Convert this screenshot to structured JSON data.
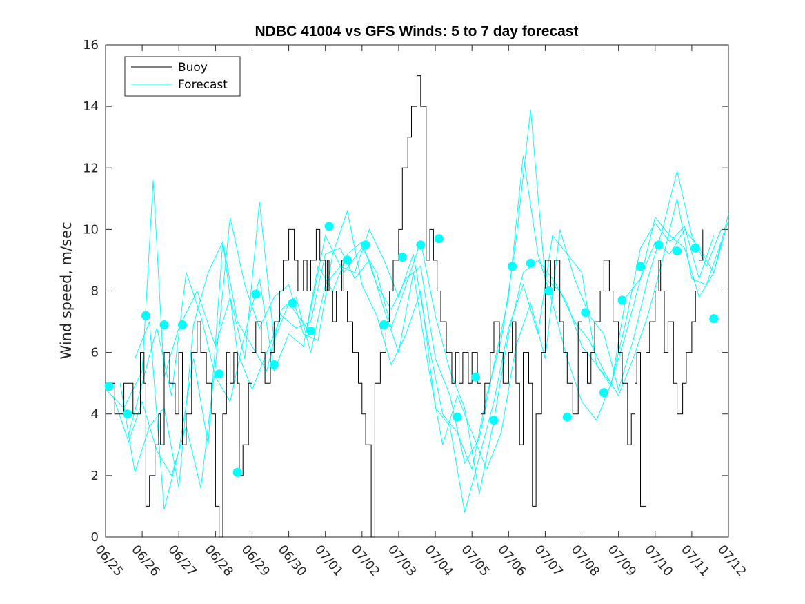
{
  "chart_data": {
    "type": "line",
    "title": "NDBC 41004 vs GFS Winds: 5 to 7 day forecast",
    "ylabel": "Wind speed, m/sec",
    "xlabel": "",
    "xlim": [
      0,
      17
    ],
    "ylim": [
      0,
      16
    ],
    "yticks": [
      0,
      2,
      4,
      6,
      8,
      10,
      12,
      14,
      16
    ],
    "xtick_labels": [
      "06/25",
      "06/26",
      "06/27",
      "06/28",
      "06/29",
      "06/30",
      "07/01",
      "07/02",
      "07/03",
      "07/04",
      "07/05",
      "07/06",
      "07/07",
      "07/08",
      "07/09",
      "07/10",
      "07/11",
      "07/12"
    ],
    "grid": false,
    "legend": {
      "placement": "top-left",
      "entries": [
        "Buoy",
        "Forecast"
      ]
    },
    "colors": {
      "buoy": "#000000",
      "forecast": "#00ffff",
      "axes": "#262626"
    },
    "buoy": {
      "name": "Buoy",
      "x": [
        0.0,
        0.25,
        0.5,
        0.75,
        0.95,
        1.05,
        1.1,
        1.2,
        1.35,
        1.45,
        1.5,
        1.6,
        1.75,
        1.9,
        2.0,
        2.1,
        2.2,
        2.35,
        2.5,
        2.6,
        2.75,
        2.9,
        3.0,
        3.1,
        3.2,
        3.3,
        3.4,
        3.5,
        3.6,
        3.65,
        3.75,
        3.9,
        4.0,
        4.1,
        4.25,
        4.35,
        4.5,
        4.6,
        4.75,
        4.85,
        5.0,
        5.15,
        5.25,
        5.4,
        5.5,
        5.6,
        5.75,
        5.85,
        6.0,
        6.05,
        6.1,
        6.2,
        6.3,
        6.45,
        6.5,
        6.6,
        6.75,
        6.9,
        7.0,
        7.1,
        7.25,
        7.35,
        7.5,
        7.65,
        7.75,
        7.85,
        8.0,
        8.1,
        8.25,
        8.35,
        8.5,
        8.6,
        8.75,
        8.85,
        8.95,
        9.05,
        9.15,
        9.3,
        9.45,
        9.55,
        9.65,
        9.75,
        9.9,
        10.0,
        10.15,
        10.25,
        10.35,
        10.5,
        10.6,
        10.75,
        10.85,
        11.0,
        11.1,
        11.2,
        11.3,
        11.4,
        11.55,
        11.65,
        11.75,
        11.9,
        12.0,
        12.15,
        12.25,
        12.4,
        12.5,
        12.6,
        12.75,
        12.9,
        13.0,
        13.15,
        13.25,
        13.35,
        13.5,
        13.6,
        13.75,
        13.85,
        14.0,
        14.1,
        14.25,
        14.35,
        14.45,
        14.5,
        14.6,
        14.75,
        14.85,
        15.0,
        15.1,
        15.15,
        15.25,
        15.35,
        15.5,
        15.6,
        15.75,
        15.85,
        16.0,
        16.1,
        16.2,
        16.3
      ],
      "y": [
        5,
        4,
        5,
        4,
        6,
        5,
        1,
        2,
        3,
        4,
        3,
        6,
        5,
        4,
        6,
        3,
        4,
        6,
        7,
        6,
        5,
        4,
        1,
        0,
        4,
        6,
        5,
        6,
        5,
        2,
        3,
        5,
        6,
        7,
        6,
        5,
        6,
        7,
        8,
        9,
        10,
        9,
        8,
        9,
        8,
        9,
        10,
        9,
        8,
        9,
        8,
        7,
        8,
        9,
        8,
        7,
        6,
        5,
        4,
        3,
        0,
        5,
        6,
        7,
        8,
        9,
        10,
        12,
        13,
        14,
        15,
        14,
        9,
        10,
        9,
        8,
        7,
        6,
        5,
        6,
        5,
        6,
        5,
        6,
        5,
        4,
        5,
        6,
        7,
        6,
        5,
        6,
        7,
        5,
        3,
        6,
        5,
        1,
        4,
        6,
        9,
        8,
        9,
        7,
        6,
        5,
        4,
        7,
        6,
        5,
        6,
        7,
        8,
        9,
        8,
        7,
        6,
        5,
        3,
        4,
        5,
        6,
        1,
        6,
        7,
        8,
        9,
        8,
        6,
        7,
        5,
        4,
        5,
        6,
        7,
        8,
        9,
        10
      ]
    },
    "forecast_points": {
      "name": "Forecast",
      "x": [
        0.1,
        0.6,
        1.1,
        1.6,
        2.1,
        3.1,
        3.6,
        4.1,
        4.6,
        5.1,
        5.6,
        6.1,
        6.6,
        7.1,
        7.6,
        8.1,
        8.6,
        9.1,
        9.6,
        10.1,
        10.6,
        11.1,
        11.6,
        12.1,
        12.6,
        13.1,
        13.6,
        14.1,
        14.6,
        15.1,
        15.6,
        16.1,
        16.6
      ],
      "y": [
        4.9,
        4.0,
        7.2,
        6.9,
        6.9,
        5.3,
        2.1,
        7.9,
        5.6,
        7.6,
        6.7,
        10.1,
        9.0,
        9.5,
        6.9,
        9.1,
        9.5,
        9.7,
        3.9,
        5.2,
        3.8,
        8.8,
        8.9,
        8.0,
        3.9,
        7.3,
        4.7,
        7.7,
        8.8,
        9.5,
        9.3,
        9.4,
        7.1
      ]
    },
    "forecast_runs": [
      {
        "x": [
          0.0,
          0.5,
          1.0,
          1.3,
          1.6,
          2.0,
          2.5,
          3.0,
          3.4,
          3.8,
          4.2,
          4.6,
          5.0,
          5.5,
          6.0,
          6.5,
          7.0,
          7.4,
          7.8,
          8.2,
          8.6,
          9.0,
          9.4,
          9.8,
          10.2,
          10.6,
          11.0,
          11.4,
          11.8,
          12.2,
          12.6,
          13.0,
          13.4,
          13.8,
          14.2,
          14.6,
          15.0,
          15.4,
          15.8,
          16.2,
          16.6,
          17.0
        ],
        "y": [
          4.8,
          4.2,
          5.4,
          11.6,
          5.2,
          6.8,
          8.0,
          6.2,
          7.8,
          5.8,
          10.9,
          6.4,
          7.6,
          6.8,
          9.8,
          8.6,
          9.4,
          8.6,
          6.8,
          8.2,
          9.6,
          7.2,
          5.4,
          4.2,
          1.4,
          3.8,
          6.6,
          8.6,
          9.0,
          8.4,
          7.6,
          6.2,
          5.6,
          4.9,
          7.8,
          8.4,
          9.6,
          9.2,
          10.0,
          9.4,
          8.6,
          10.5
        ]
      },
      {
        "x": [
          0.2,
          0.6,
          1.0,
          1.4,
          1.8,
          2.2,
          2.6,
          3.0,
          3.4,
          3.8,
          4.2,
          4.6,
          5.0,
          5.4,
          5.8,
          6.2,
          6.6,
          7.0,
          7.4,
          7.8,
          8.2,
          8.6,
          9.0,
          9.4,
          9.8,
          10.2,
          10.6,
          11.0,
          11.4,
          11.8,
          12.2,
          12.6,
          13.0,
          13.4,
          13.8,
          14.2,
          14.6,
          15.0,
          15.4,
          15.8,
          16.2,
          16.6,
          17.0
        ],
        "y": [
          4.6,
          3.2,
          5.0,
          6.8,
          4.6,
          8.6,
          7.2,
          5.2,
          4.4,
          6.6,
          8.4,
          5.4,
          6.6,
          6.2,
          8.8,
          8.0,
          9.2,
          9.6,
          8.2,
          7.4,
          8.4,
          8.8,
          5.8,
          4.6,
          2.4,
          3.2,
          5.6,
          7.8,
          12.4,
          9.2,
          7.6,
          5.8,
          4.4,
          3.8,
          5.0,
          6.6,
          8.4,
          10.4,
          9.8,
          9.4,
          7.8,
          8.6,
          10.3
        ]
      },
      {
        "x": [
          0.4,
          0.8,
          1.2,
          1.6,
          2.0,
          2.4,
          2.8,
          3.2,
          3.6,
          4.0,
          4.4,
          4.8,
          5.2,
          5.6,
          6.0,
          6.4,
          6.8,
          7.2,
          7.6,
          8.0,
          8.4,
          8.8,
          9.2,
          9.6,
          10.0,
          10.4,
          10.8,
          11.2,
          11.6,
          12.0,
          12.4,
          12.8,
          13.2,
          13.6,
          14.0,
          14.4,
          14.8,
          15.2,
          15.6,
          16.0,
          16.4,
          16.8
        ],
        "y": [
          5.0,
          2.1,
          3.6,
          4.2,
          1.6,
          6.9,
          8.6,
          9.6,
          7.0,
          6.2,
          5.4,
          7.4,
          7.8,
          6.0,
          8.2,
          8.8,
          8.6,
          10.0,
          9.0,
          7.8,
          9.2,
          6.4,
          4.0,
          3.4,
          2.2,
          4.6,
          6.4,
          9.6,
          13.9,
          8.4,
          8.0,
          7.0,
          6.4,
          5.4,
          4.6,
          5.8,
          7.2,
          9.0,
          11.0,
          8.4,
          8.2,
          9.6
        ]
      },
      {
        "x": [
          0.6,
          1.0,
          1.4,
          1.8,
          2.2,
          2.6,
          3.0,
          3.4,
          3.8,
          4.2,
          4.6,
          5.0,
          5.4,
          5.8,
          6.2,
          6.6,
          7.0,
          7.4,
          7.8,
          8.2,
          8.6,
          9.0,
          9.4,
          9.8,
          10.2,
          10.6,
          11.0,
          11.4,
          11.8,
          12.2,
          12.6,
          13.0,
          13.4,
          13.8,
          14.2,
          14.6,
          15.0,
          15.4,
          15.8,
          16.2,
          16.6
        ],
        "y": [
          3.0,
          4.4,
          2.8,
          2.0,
          3.6,
          1.6,
          5.6,
          10.4,
          8.2,
          6.8,
          7.8,
          8.2,
          6.6,
          6.4,
          9.2,
          10.6,
          8.2,
          7.2,
          5.6,
          6.6,
          8.0,
          4.2,
          3.6,
          0.8,
          2.6,
          4.4,
          6.8,
          8.2,
          6.6,
          9.8,
          9.2,
          8.6,
          5.6,
          5.0,
          7.0,
          9.4,
          10.2,
          9.6,
          10.1,
          8.4,
          9.8
        ]
      },
      {
        "x": [
          0.8,
          1.2,
          1.6,
          2.0,
          2.4,
          2.8,
          3.2,
          3.6,
          4.0,
          4.4,
          4.8,
          5.2,
          5.6,
          6.0,
          6.4,
          6.8,
          7.2,
          7.6,
          8.0,
          8.4,
          8.8,
          9.2,
          9.6,
          10.0,
          10.4,
          10.8,
          11.2,
          11.6,
          12.0,
          12.4,
          12.8,
          13.2,
          13.6,
          14.0,
          14.4,
          14.8,
          15.2,
          15.6,
          16.0,
          16.4,
          16.8
        ],
        "y": [
          5.8,
          7.0,
          0.9,
          2.8,
          5.8,
          3.0,
          9.6,
          6.0,
          4.8,
          6.0,
          7.2,
          6.8,
          7.0,
          9.2,
          9.4,
          8.4,
          9.0,
          7.4,
          6.0,
          8.6,
          5.6,
          3.0,
          4.6,
          3.4,
          2.2,
          3.4,
          6.2,
          7.6,
          5.8,
          10.0,
          8.4,
          7.2,
          6.6,
          4.8,
          6.4,
          8.4,
          10.0,
          11.9,
          9.8,
          8.8,
          10.0
        ]
      }
    ]
  }
}
